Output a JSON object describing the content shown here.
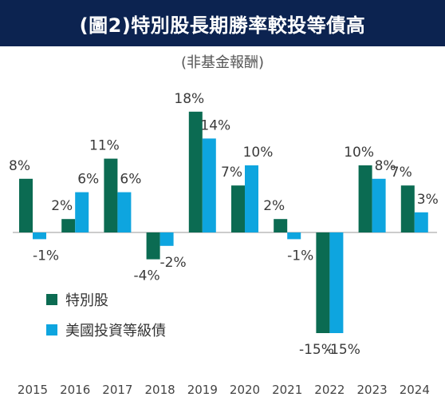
{
  "chart_data": {
    "type": "bar",
    "title": "(圖2)特別股長期勝率較投等債高",
    "subtitle": "(非基金報酬)",
    "categories": [
      "2015",
      "2016",
      "2017",
      "2018",
      "2019",
      "2020",
      "2021",
      "2022",
      "2023",
      "2024"
    ],
    "series": [
      {
        "name": "特別股",
        "color": "#0b6b52",
        "values": [
          8,
          2,
          11,
          -4,
          18,
          7,
          2,
          -15,
          10,
          7
        ],
        "labels": [
          "8%",
          "2%",
          "11%",
          "-4%",
          "18%",
          "7%",
          "2%",
          "-15%",
          "10%",
          "7%"
        ]
      },
      {
        "name": "美國投資等級債",
        "color": "#0ea5df",
        "values": [
          -1,
          6,
          6,
          -2,
          14,
          10,
          -1,
          -15,
          8,
          3
        ],
        "labels": [
          "-1%",
          "6%",
          "6%",
          "-2%",
          "14%",
          "10%",
          "-1%",
          "-15%",
          "8%",
          "3%"
        ]
      }
    ],
    "ylim": [
      -17,
      20
    ],
    "grid": false,
    "legend": "bottom-left"
  }
}
